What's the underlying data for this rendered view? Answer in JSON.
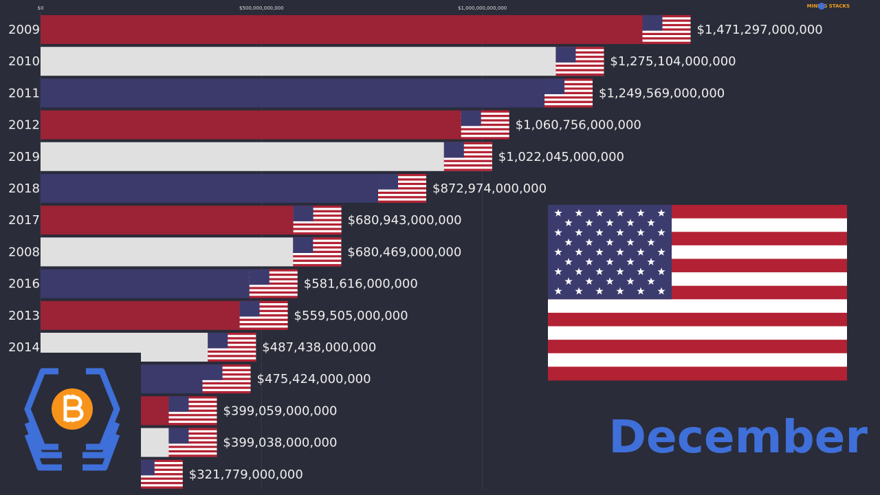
{
  "chart_data": {
    "type": "bar",
    "orientation": "horizontal",
    "categories": [
      "2009",
      "2010",
      "2011",
      "2012",
      "2019",
      "2018",
      "2017",
      "2008",
      "2016",
      "2013",
      "2014",
      null,
      null,
      null,
      null
    ],
    "values": [
      1471297000000,
      1275104000000,
      1249569000000,
      1060756000000,
      1022045000000,
      872974000000,
      680943000000,
      680469000000,
      581616000000,
      559505000000,
      487438000000,
      475424000000,
      399059000000,
      399038000000,
      321779000000
    ],
    "value_labels": [
      "$1,471,297,000,000",
      "$1,275,104,000,000",
      "$1,249,569,000,000",
      "$1,060,756,000,000",
      "$1,022,045,000,000",
      "$872,974,000,000",
      "$680,943,000,000",
      "$680,469,000,000",
      "$581,616,000,000",
      "$559,505,000,000",
      "$487,438,000,000",
      "$475,424,000,000",
      "$399,059,000,000",
      "$399,038,000,000",
      "$321,779,000,000"
    ],
    "colors": [
      "#9b2335",
      "#e0e0e0",
      "#3b3a6b",
      "#9b2335",
      "#e0e0e0",
      "#3b3a6b",
      "#9b2335",
      "#e0e0e0",
      "#3b3a6b",
      "#9b2335",
      "#e0e0e0",
      "#3b3a6b",
      "#9b2335",
      "#e0e0e0",
      "#3b3a6b"
    ],
    "xlim": [
      0,
      1900000000000
    ],
    "xticks": [
      {
        "value": 0,
        "label": "$0"
      },
      {
        "value": 500000000000,
        "label": "$500,000,000,000"
      },
      {
        "value": 1000000000000,
        "label": "$1,000,000,000,000"
      }
    ],
    "grid": true,
    "period_label": "December",
    "watermark": "MINING STACKS"
  }
}
